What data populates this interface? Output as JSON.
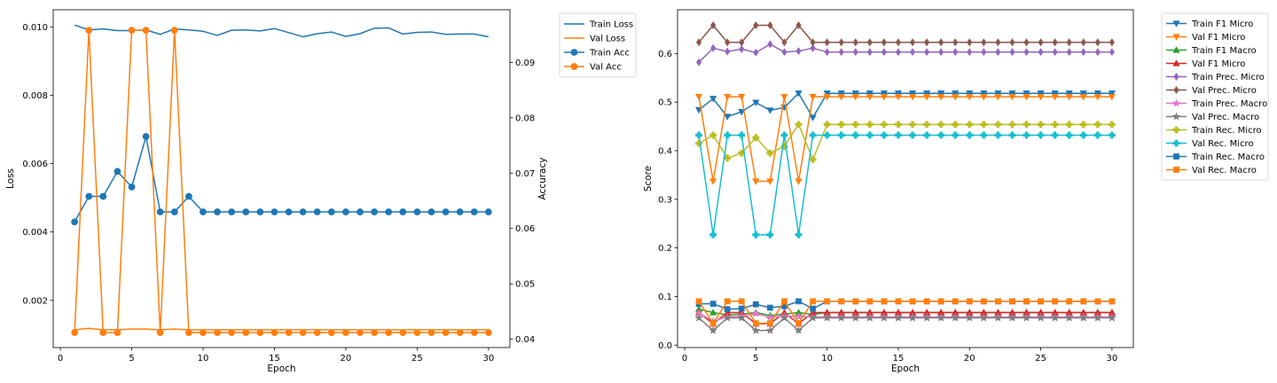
{
  "chart_data": [
    {
      "type": "line",
      "xlabel": "Epoch",
      "ylabel": "Loss",
      "y2label": "Accuracy",
      "xlim": [
        -0.5,
        31.5
      ],
      "ylim": [
        0.00062,
        0.0105
      ],
      "y2lim": [
        0.0385,
        0.0995
      ],
      "xticks": [
        0,
        5,
        10,
        15,
        20,
        25,
        30
      ],
      "yticks": [
        0.002,
        0.004,
        0.006,
        0.008,
        0.01
      ],
      "yticklabels": [
        "0.002",
        "0.004",
        "0.006",
        "0.008",
        "0.010"
      ],
      "y2ticks": [
        0.04,
        0.05,
        0.06,
        0.07,
        0.08,
        0.09
      ],
      "y2ticklabels": [
        "0.04",
        "0.05",
        "0.06",
        "0.07",
        "0.08",
        "0.09"
      ],
      "grid": false,
      "legend_position": "outside-right",
      "x": [
        1,
        2,
        3,
        4,
        5,
        6,
        7,
        8,
        9,
        10,
        11,
        12,
        13,
        14,
        15,
        16,
        17,
        18,
        19,
        20,
        21,
        22,
        23,
        24,
        25,
        26,
        27,
        28,
        29,
        30
      ],
      "series": [
        {
          "name": "Train Loss",
          "axis": "left",
          "color": "#1f77b4",
          "marker": "none",
          "values": [
            0.01005,
            0.00991,
            0.00994,
            0.00989,
            0.00989,
            0.00991,
            0.00978,
            0.00994,
            0.00991,
            0.00987,
            0.00975,
            0.0099,
            0.00991,
            0.00988,
            0.00995,
            0.00983,
            0.00971,
            0.0098,
            0.00985,
            0.00972,
            0.0098,
            0.00996,
            0.00997,
            0.00979,
            0.00984,
            0.00985,
            0.00978,
            0.00979,
            0.00979,
            0.00971
          ]
        },
        {
          "name": "Val Loss",
          "axis": "left",
          "color": "#ff7f0e",
          "marker": "none",
          "values": [
            0.00114,
            0.00118,
            0.00114,
            0.00114,
            0.00116,
            0.00116,
            0.00114,
            0.00116,
            0.00114,
            0.00114,
            0.00114,
            0.00114,
            0.00114,
            0.00114,
            0.00114,
            0.00114,
            0.00114,
            0.00114,
            0.00114,
            0.00114,
            0.00114,
            0.00114,
            0.00114,
            0.00114,
            0.00114,
            0.00114,
            0.00114,
            0.00114,
            0.00114,
            0.00114
          ]
        },
        {
          "name": "Train Acc",
          "axis": "right",
          "color": "#1f77b4",
          "marker": "circle",
          "values": [
            0.0612,
            0.0658,
            0.0658,
            0.0703,
            0.0675,
            0.0766,
            0.063,
            0.063,
            0.0658,
            0.063,
            0.063,
            0.063,
            0.063,
            0.063,
            0.063,
            0.063,
            0.063,
            0.063,
            0.063,
            0.063,
            0.063,
            0.063,
            0.063,
            0.063,
            0.063,
            0.063,
            0.063,
            0.063,
            0.063,
            0.063
          ]
        },
        {
          "name": "Val Acc",
          "axis": "right",
          "color": "#ff7f0e",
          "marker": "circle",
          "values": [
            0.0412,
            0.0958,
            0.0412,
            0.0412,
            0.0958,
            0.0958,
            0.0412,
            0.0958,
            0.0412,
            0.0412,
            0.0412,
            0.0412,
            0.0412,
            0.0412,
            0.0412,
            0.0412,
            0.0412,
            0.0412,
            0.0412,
            0.0412,
            0.0412,
            0.0412,
            0.0412,
            0.0412,
            0.0412,
            0.0412,
            0.0412,
            0.0412,
            0.0412,
            0.0412
          ]
        }
      ]
    },
    {
      "type": "line",
      "xlabel": "Epoch",
      "ylabel": "Score",
      "xlim": [
        -0.5,
        31.5
      ],
      "ylim": [
        -0.005,
        0.69
      ],
      "xticks": [
        0,
        5,
        10,
        15,
        20,
        25,
        30
      ],
      "yticks": [
        0.0,
        0.1,
        0.2,
        0.3,
        0.4,
        0.5,
        0.6
      ],
      "yticklabels": [
        "0.0",
        "0.1",
        "0.2",
        "0.3",
        "0.4",
        "0.5",
        "0.6"
      ],
      "grid": false,
      "legend_position": "outside-right",
      "x": [
        1,
        2,
        3,
        4,
        5,
        6,
        7,
        8,
        9,
        10,
        11,
        12,
        13,
        14,
        15,
        16,
        17,
        18,
        19,
        20,
        21,
        22,
        23,
        24,
        25,
        26,
        27,
        28,
        29,
        30
      ],
      "series": [
        {
          "name": "Train F1 Micro",
          "color": "#1f77b4",
          "marker": "triangle-down",
          "values": [
            0.484,
            0.507,
            0.47,
            0.48,
            0.499,
            0.483,
            0.489,
            0.518,
            0.468,
            0.518,
            0.518,
            0.518,
            0.518,
            0.518,
            0.518,
            0.518,
            0.518,
            0.518,
            0.518,
            0.518,
            0.518,
            0.518,
            0.518,
            0.518,
            0.518,
            0.518,
            0.518,
            0.518,
            0.518,
            0.518
          ]
        },
        {
          "name": "Val F1 Micro",
          "color": "#ff7f0e",
          "marker": "triangle-down",
          "values": [
            0.511,
            0.337,
            0.511,
            0.511,
            0.337,
            0.337,
            0.511,
            0.337,
            0.511,
            0.511,
            0.511,
            0.511,
            0.511,
            0.511,
            0.511,
            0.511,
            0.511,
            0.511,
            0.511,
            0.511,
            0.511,
            0.511,
            0.511,
            0.511,
            0.511,
            0.511,
            0.511,
            0.511,
            0.511,
            0.511
          ]
        },
        {
          "name": "Train F1 Macro",
          "color": "#2ca02c",
          "marker": "triangle-up",
          "values": [
            0.074,
            0.067,
            0.062,
            0.064,
            0.067,
            0.061,
            0.064,
            0.067,
            0.063,
            0.067,
            0.067,
            0.067,
            0.067,
            0.067,
            0.067,
            0.067,
            0.067,
            0.067,
            0.067,
            0.067,
            0.067,
            0.067,
            0.067,
            0.067,
            0.067,
            0.067,
            0.067,
            0.067,
            0.067,
            0.067
          ]
        },
        {
          "name": "Val F1 Micro",
          "color": "#d62728",
          "marker": "triangle-up",
          "values": [
            0.067,
            0.044,
            0.067,
            0.067,
            0.044,
            0.044,
            0.067,
            0.044,
            0.067,
            0.067,
            0.067,
            0.067,
            0.067,
            0.067,
            0.067,
            0.067,
            0.067,
            0.067,
            0.067,
            0.067,
            0.067,
            0.067,
            0.067,
            0.067,
            0.067,
            0.067,
            0.067,
            0.067,
            0.067,
            0.067
          ]
        },
        {
          "name": "Train Prec. Micro",
          "color": "#9467bd",
          "marker": "diamond",
          "values": [
            0.582,
            0.611,
            0.604,
            0.609,
            0.602,
            0.619,
            0.603,
            0.605,
            0.611,
            0.603,
            0.603,
            0.603,
            0.603,
            0.603,
            0.603,
            0.603,
            0.603,
            0.603,
            0.603,
            0.603,
            0.603,
            0.603,
            0.603,
            0.603,
            0.603,
            0.603,
            0.603,
            0.603,
            0.603,
            0.603
          ]
        },
        {
          "name": "Val Prec. Micro",
          "color": "#8c564b",
          "marker": "diamond",
          "values": [
            0.623,
            0.658,
            0.623,
            0.623,
            0.658,
            0.658,
            0.623,
            0.658,
            0.623,
            0.623,
            0.623,
            0.623,
            0.623,
            0.623,
            0.623,
            0.623,
            0.623,
            0.623,
            0.623,
            0.623,
            0.623,
            0.623,
            0.623,
            0.623,
            0.623,
            0.623,
            0.623,
            0.623,
            0.623,
            0.623
          ]
        },
        {
          "name": "Train Prec. Macro",
          "color": "#e377c2",
          "marker": "star",
          "values": [
            0.066,
            0.049,
            0.058,
            0.06,
            0.065,
            0.057,
            0.06,
            0.059,
            0.058,
            0.058,
            0.058,
            0.058,
            0.058,
            0.058,
            0.058,
            0.058,
            0.058,
            0.058,
            0.058,
            0.058,
            0.058,
            0.058,
            0.058,
            0.058,
            0.058,
            0.058,
            0.058,
            0.058,
            0.058,
            0.058
          ]
        },
        {
          "name": "Val Prec. Macro",
          "color": "#7f7f7f",
          "marker": "star",
          "values": [
            0.056,
            0.03,
            0.056,
            0.056,
            0.03,
            0.03,
            0.056,
            0.03,
            0.056,
            0.056,
            0.056,
            0.056,
            0.056,
            0.056,
            0.056,
            0.056,
            0.056,
            0.056,
            0.056,
            0.056,
            0.056,
            0.056,
            0.056,
            0.056,
            0.056,
            0.056,
            0.056,
            0.056,
            0.056,
            0.056
          ]
        },
        {
          "name": "Train Rec. Micro",
          "color": "#bcbd22",
          "marker": "plus",
          "values": [
            0.415,
            0.432,
            0.385,
            0.395,
            0.427,
            0.395,
            0.409,
            0.454,
            0.382,
            0.454,
            0.454,
            0.454,
            0.454,
            0.454,
            0.454,
            0.454,
            0.454,
            0.454,
            0.454,
            0.454,
            0.454,
            0.454,
            0.454,
            0.454,
            0.454,
            0.454,
            0.454,
            0.454,
            0.454,
            0.454
          ]
        },
        {
          "name": "Val Rec. Micro",
          "color": "#17becf",
          "marker": "plus",
          "values": [
            0.432,
            0.227,
            0.432,
            0.432,
            0.227,
            0.227,
            0.432,
            0.227,
            0.432,
            0.432,
            0.432,
            0.432,
            0.432,
            0.432,
            0.432,
            0.432,
            0.432,
            0.432,
            0.432,
            0.432,
            0.432,
            0.432,
            0.432,
            0.432,
            0.432,
            0.432,
            0.432,
            0.432,
            0.432,
            0.432
          ]
        },
        {
          "name": "Train Rec. Macro",
          "color": "#1f77b4",
          "marker": "square",
          "values": [
            0.085,
            0.085,
            0.074,
            0.075,
            0.084,
            0.077,
            0.08,
            0.09,
            0.075,
            0.09,
            0.09,
            0.09,
            0.09,
            0.09,
            0.09,
            0.09,
            0.09,
            0.09,
            0.09,
            0.09,
            0.09,
            0.09,
            0.09,
            0.09,
            0.09,
            0.09,
            0.09,
            0.09,
            0.09,
            0.09
          ]
        },
        {
          "name": "Val Rec. Macro",
          "color": "#ff7f0e",
          "marker": "square",
          "values": [
            0.09,
            0.045,
            0.09,
            0.09,
            0.045,
            0.045,
            0.09,
            0.045,
            0.09,
            0.09,
            0.09,
            0.09,
            0.09,
            0.09,
            0.09,
            0.09,
            0.09,
            0.09,
            0.09,
            0.09,
            0.09,
            0.09,
            0.09,
            0.09,
            0.09,
            0.09,
            0.09,
            0.09,
            0.09,
            0.09
          ]
        }
      ]
    }
  ]
}
